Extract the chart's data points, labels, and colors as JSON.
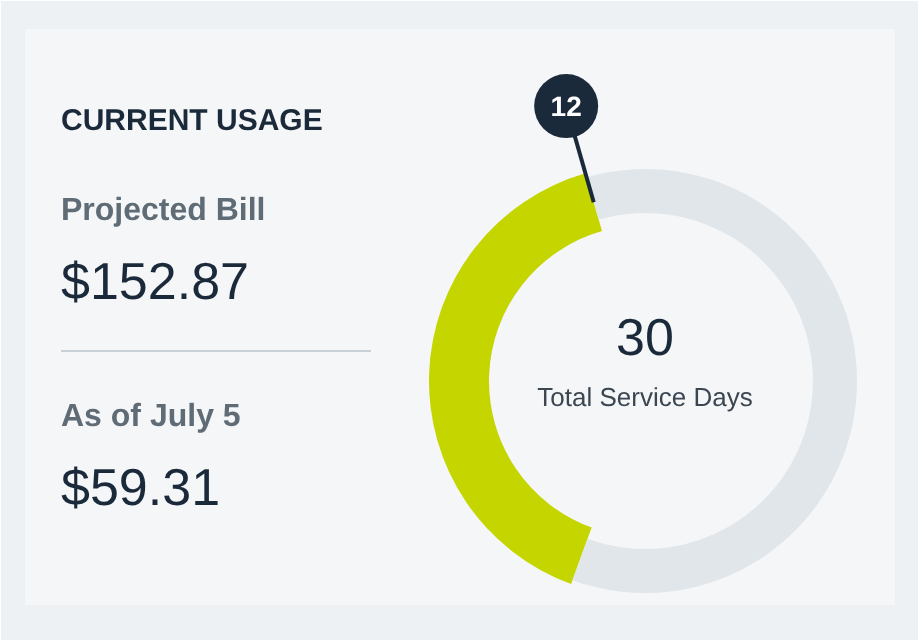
{
  "chart_data": [
    {
      "type": "other",
      "title": "CURRENT USAGE",
      "annotations": [
        "Projected Bill",
        "$152.87",
        "As of July 5",
        "$59.31"
      ]
    },
    {
      "type": "donut",
      "categories": [
        null,
        null
      ],
      "values": [
        12,
        18
      ],
      "colors": [
        "#c5d500",
        "#e1e6ea"
      ],
      "value_labels": [
        "12",
        null
      ],
      "annotations": [
        "30",
        "Total Service Days"
      ]
    }
  ]
}
